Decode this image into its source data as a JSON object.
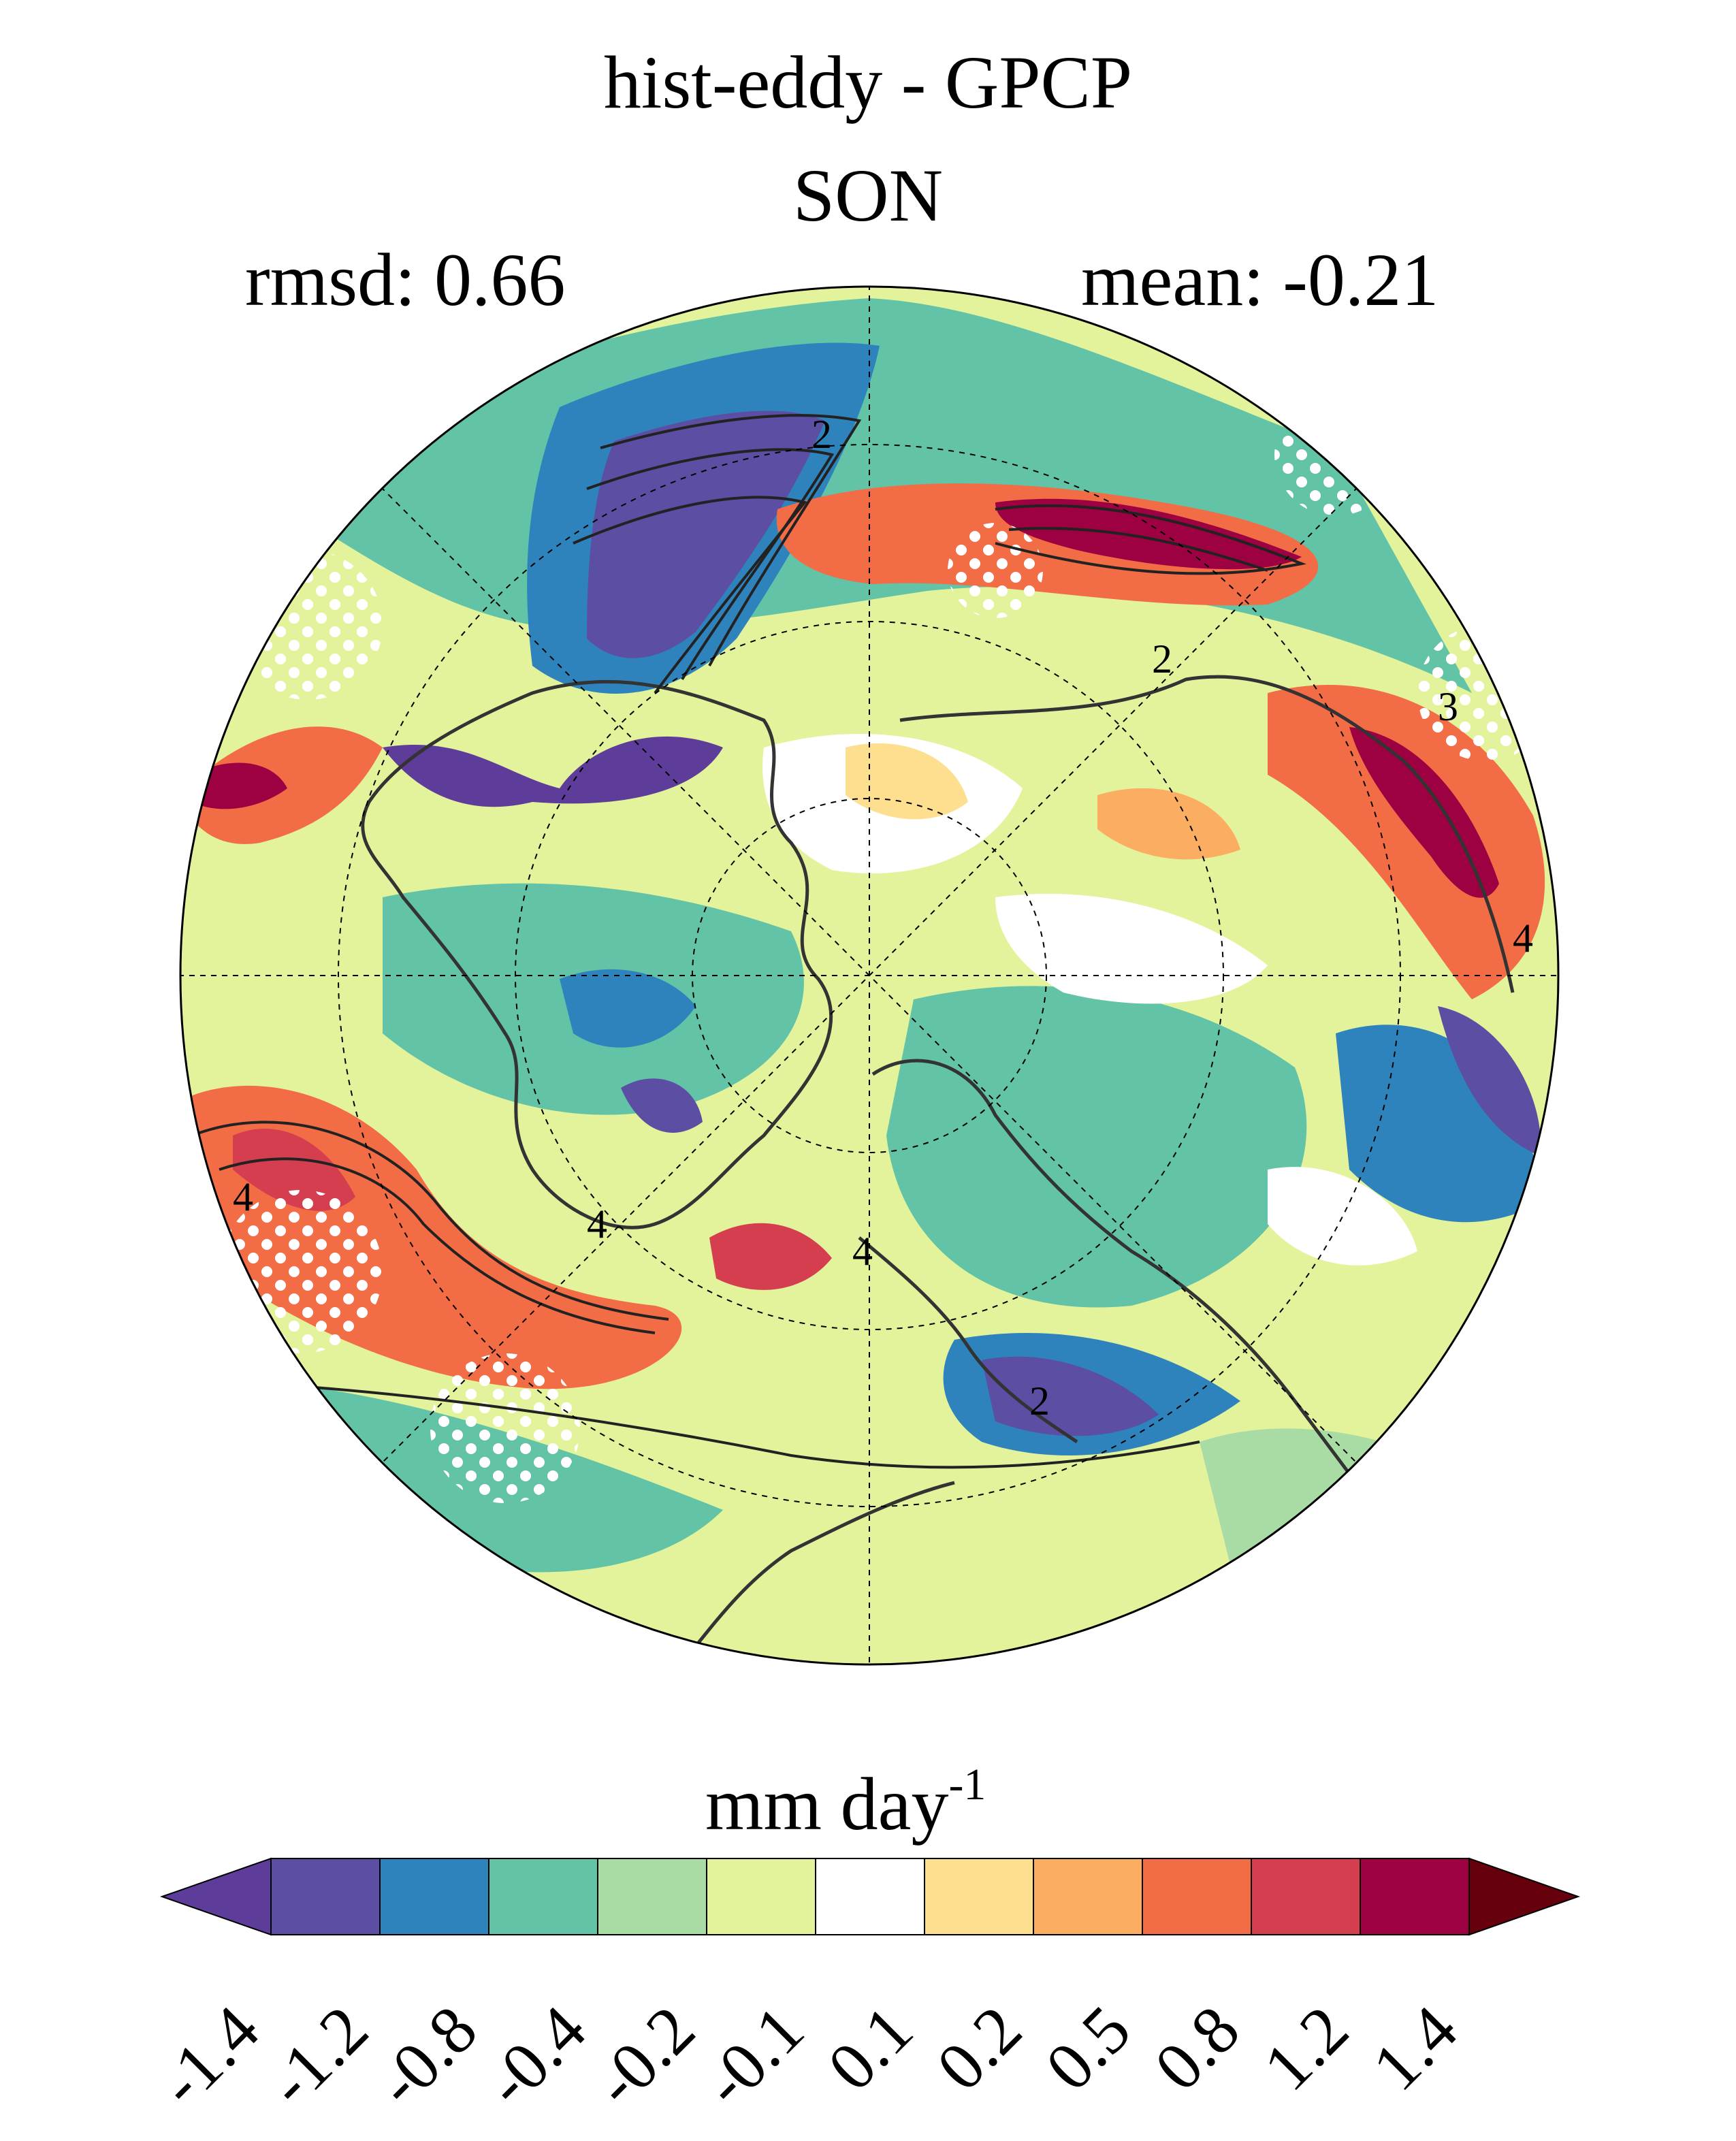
{
  "title": {
    "line1": "hist-eddy - GPCP",
    "line2": "SON"
  },
  "stats": {
    "rmsd": "rmsd: 0.66",
    "mean": "mean: -0.21"
  },
  "map": {
    "projection": "north-polar-stereographic",
    "contour_labels": [
      "2",
      "2",
      "3",
      "4",
      "4",
      "4",
      "4",
      "2"
    ],
    "stippling": "white dots"
  },
  "colorbar": {
    "units_main": "mm day",
    "units_sup": "-1",
    "tick_labels": [
      "-1.4",
      "-1.2",
      "-0.8",
      "-0.4",
      "-0.2",
      "-0.1",
      "0.1",
      "0.2",
      "0.5",
      "0.8",
      "1.2",
      "1.4"
    ],
    "colors": [
      "#5e3c99",
      "#5b4ea3",
      "#2f83bd",
      "#63c3a6",
      "#a9dca4",
      "#e3f39c",
      "#ffffff",
      "#fddf8f",
      "#fbae61",
      "#f26c45",
      "#d53e4f",
      "#9e0142",
      "#67000d"
    ],
    "extend": "both"
  }
}
